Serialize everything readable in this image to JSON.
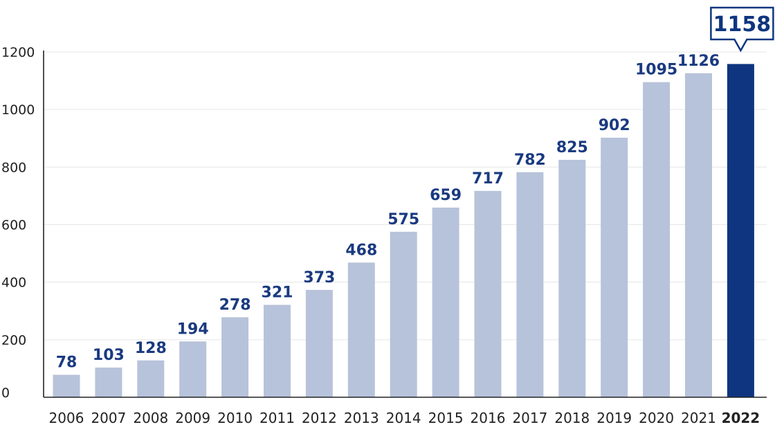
{
  "chart_data": {
    "type": "bar",
    "categories": [
      "2006",
      "2007",
      "2008",
      "2009",
      "2010",
      "2011",
      "2012",
      "2013",
      "2014",
      "2015",
      "2016",
      "2017",
      "2018",
      "2019",
      "2020",
      "2021",
      "2022"
    ],
    "values": [
      78,
      103,
      128,
      194,
      278,
      321,
      373,
      468,
      575,
      659,
      717,
      782,
      825,
      902,
      1095,
      1126,
      1158
    ],
    "ylim": [
      0,
      1200
    ],
    "yticks": [
      0,
      200,
      400,
      600,
      800,
      1000,
      1200
    ],
    "grid": true,
    "highlight_category": "2022",
    "colors": {
      "bar": "#b7c3da",
      "highlight_bar": "#0f3580",
      "label": "#1a3a80",
      "axis": "#222222",
      "grid": "#e6e6e6"
    }
  }
}
